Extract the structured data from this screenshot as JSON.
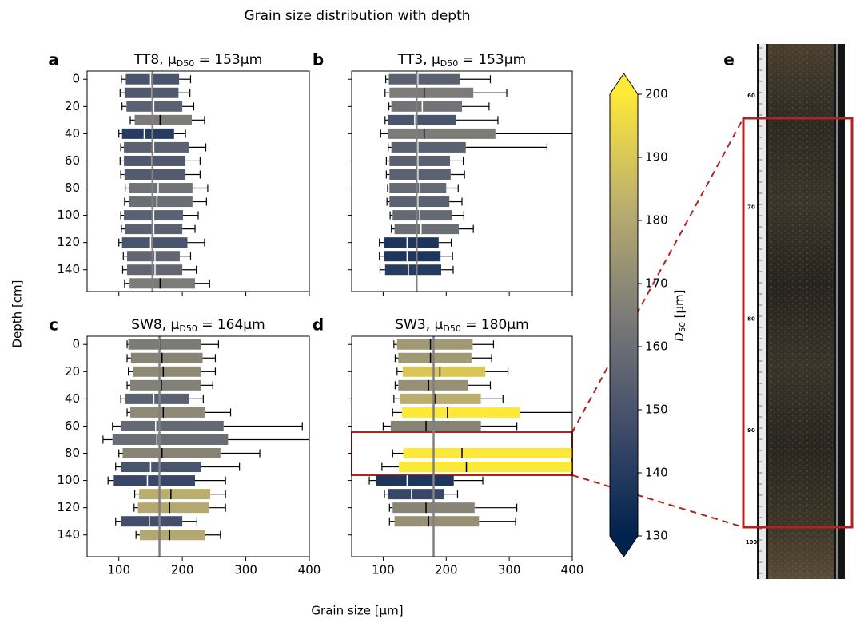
{
  "title": "Grain size distribution with depth",
  "xlabel": "Grain size [μm]",
  "ylabel": "Depth [cm]",
  "chart_data": {
    "type": "boxplot",
    "xlim": [
      50,
      400
    ],
    "xticks": [
      100,
      200,
      300,
      400
    ],
    "ylim": [
      156,
      -6
    ],
    "yticks": [
      0,
      20,
      40,
      60,
      80,
      100,
      120,
      140
    ],
    "mean_color": "#808080",
    "panels": [
      {
        "letter": "a",
        "title": "TT8, μ",
        "title_sub": "D50",
        "title_tail": " = 153μm",
        "mean": 153,
        "ytick_labels": true,
        "xtick_labels": false,
        "rows": [
          [
            0,
            104,
            111,
            150,
            195,
            213
          ],
          [
            10,
            102,
            109,
            152,
            194,
            212
          ],
          [
            20,
            105,
            112,
            155,
            200,
            218
          ],
          [
            30,
            118,
            125,
            165,
            215,
            235
          ],
          [
            40,
            100,
            105,
            140,
            187,
            205
          ],
          [
            50,
            103,
            108,
            155,
            210,
            237
          ],
          [
            60,
            102,
            108,
            152,
            205,
            228
          ],
          [
            70,
            103,
            109,
            153,
            205,
            228
          ],
          [
            80,
            110,
            116,
            162,
            216,
            240
          ],
          [
            90,
            109,
            116,
            160,
            216,
            238
          ],
          [
            100,
            103,
            108,
            155,
            201,
            225
          ],
          [
            110,
            104,
            110,
            155,
            200,
            220
          ],
          [
            120,
            100,
            105,
            150,
            208,
            235
          ],
          [
            130,
            107,
            113,
            157,
            196,
            213
          ],
          [
            140,
            106,
            113,
            157,
            200,
            222
          ],
          [
            150,
            109,
            117,
            165,
            220,
            243
          ]
        ]
      },
      {
        "letter": "b",
        "title": "TT3, μ",
        "title_sub": "D50",
        "title_tail": " = 153μm",
        "mean": 153,
        "ytick_labels": false,
        "xtick_labels": false,
        "rows": [
          [
            0,
            104,
            109,
            155,
            222,
            270
          ],
          [
            10,
            103,
            110,
            165,
            243,
            296
          ],
          [
            20,
            109,
            113,
            162,
            225,
            268
          ],
          [
            30,
            103,
            107,
            150,
            216,
            282
          ],
          [
            40,
            96,
            108,
            165,
            278,
            420
          ],
          [
            50,
            108,
            113,
            155,
            231,
            360
          ],
          [
            60,
            105,
            110,
            155,
            206,
            227
          ],
          [
            70,
            105,
            110,
            155,
            207,
            229
          ],
          [
            80,
            107,
            110,
            158,
            200,
            219
          ],
          [
            90,
            106,
            110,
            155,
            205,
            225
          ],
          [
            100,
            111,
            115,
            158,
            209,
            228
          ],
          [
            110,
            113,
            118,
            160,
            220,
            243
          ],
          [
            120,
            94,
            101,
            138,
            188,
            208
          ],
          [
            130,
            94,
            102,
            138,
            191,
            210
          ],
          [
            140,
            95,
            103,
            140,
            192,
            211
          ]
        ]
      },
      {
        "letter": "c",
        "title": "SW8, μ",
        "title_sub": "D50",
        "title_tail": " = 164μm",
        "mean": 164,
        "ytick_labels": true,
        "xtick_labels": true,
        "rows": [
          [
            0,
            113,
            115,
            165,
            229,
            257
          ],
          [
            10,
            113,
            119,
            168,
            232,
            252
          ],
          [
            20,
            115,
            123,
            170,
            229,
            252
          ],
          [
            30,
            113,
            118,
            167,
            229,
            248
          ],
          [
            40,
            103,
            110,
            155,
            211,
            233
          ],
          [
            50,
            113,
            118,
            170,
            235,
            276
          ],
          [
            60,
            90,
            103,
            158,
            265,
            389
          ],
          [
            70,
            75,
            90,
            160,
            272,
            410
          ],
          [
            80,
            100,
            106,
            168,
            260,
            322
          ],
          [
            90,
            95,
            103,
            150,
            230,
            290
          ],
          [
            100,
            83,
            92,
            145,
            220,
            268
          ],
          [
            110,
            125,
            132,
            182,
            244,
            268
          ],
          [
            120,
            124,
            130,
            180,
            242,
            268
          ],
          [
            130,
            95,
            103,
            148,
            200,
            223
          ],
          [
            140,
            127,
            133,
            180,
            236,
            260
          ]
        ]
      },
      {
        "letter": "d",
        "title": "SW3, μ",
        "title_sub": "D50",
        "title_tail": " = 180μm",
        "mean": 180,
        "ytick_labels": false,
        "xtick_labels": true,
        "rows": [
          [
            0,
            117,
            122,
            175,
            242,
            275
          ],
          [
            10,
            119,
            124,
            175,
            240,
            272
          ],
          [
            20,
            122,
            131,
            190,
            262,
            298
          ],
          [
            30,
            119,
            124,
            172,
            235,
            270
          ],
          [
            40,
            117,
            127,
            182,
            255,
            290
          ],
          [
            50,
            115,
            130,
            202,
            317,
            420
          ],
          [
            60,
            100,
            112,
            168,
            255,
            312
          ],
          [
            80,
            115,
            132,
            225,
            430,
            480
          ],
          [
            90,
            98,
            125,
            232,
            430,
            480
          ],
          [
            100,
            78,
            88,
            138,
            212,
            258
          ],
          [
            110,
            102,
            108,
            145,
            197,
            218
          ],
          [
            120,
            110,
            115,
            168,
            245,
            312
          ],
          [
            130,
            110,
            118,
            172,
            252,
            310
          ]
        ]
      }
    ],
    "colorbar": {
      "label": "D",
      "label_sub": "50",
      "label_tail": " [μm]",
      "clim": [
        130,
        200
      ],
      "ticks": [
        130,
        140,
        150,
        160,
        170,
        180,
        190,
        200
      ],
      "colormap": [
        "#00224e",
        "#414d6b",
        "#7c7b78",
        "#bcaf6f",
        "#fee838"
      ]
    }
  },
  "core_photo": {
    "letter": "e",
    "ruler": [
      60,
      70,
      80,
      90,
      100
    ]
  }
}
